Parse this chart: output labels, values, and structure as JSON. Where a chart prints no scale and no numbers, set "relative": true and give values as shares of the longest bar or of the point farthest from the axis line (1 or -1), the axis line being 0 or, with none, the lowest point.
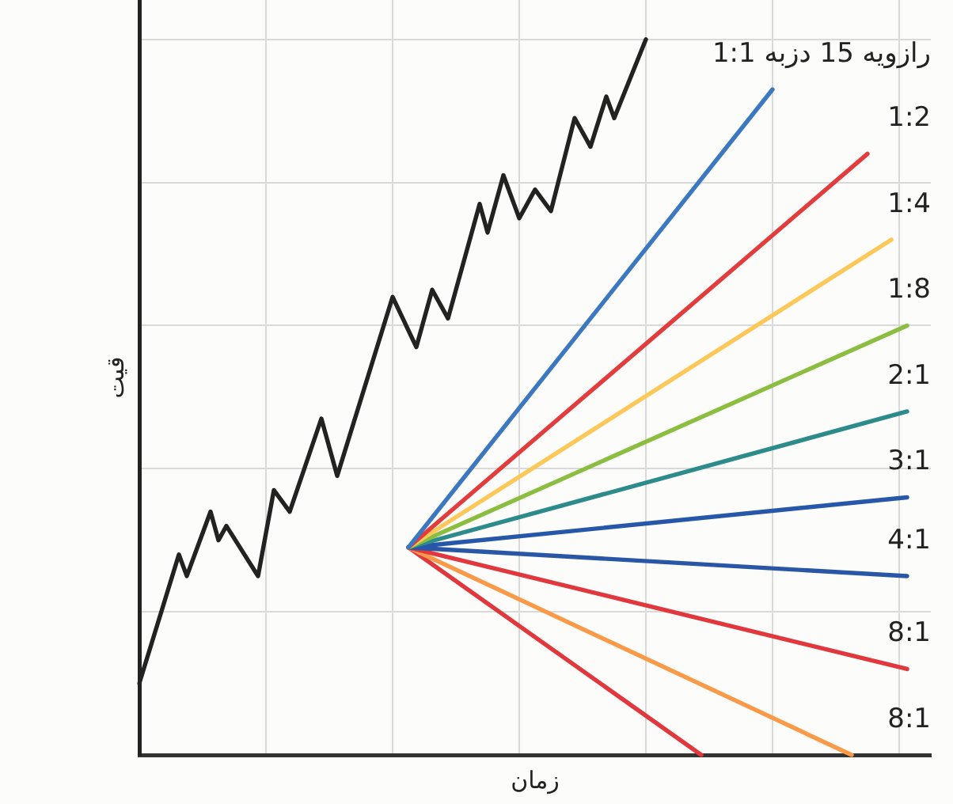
{
  "chart_data": {
    "type": "line",
    "xlabel": "زمان",
    "ylabel": "قیت",
    "relative": true,
    "grid": true,
    "marker": "none",
    "line_style": "solid",
    "categories": [
      null,
      null,
      null,
      null,
      null,
      null,
      null,
      null,
      null,
      null,
      null,
      null,
      null,
      null,
      null,
      null,
      null,
      null,
      null,
      null,
      null,
      null,
      null,
      null,
      null,
      null,
      null,
      null,
      null,
      null,
      null,
      null,
      null,
      null,
      null,
      null,
      null,
      null,
      null,
      null,
      null,
      null,
      null,
      null,
      null,
      null,
      null,
      null,
      null,
      null,
      null,
      null,
      null,
      null,
      null,
      null,
      null,
      null,
      null,
      null,
      null,
      null,
      null,
      null,
      null,
      null,
      null,
      null,
      null,
      null,
      null,
      null,
      null,
      null,
      null,
      null,
      null,
      null,
      null,
      null,
      null,
      null,
      null,
      null,
      null,
      null,
      null,
      null,
      null,
      null,
      null,
      null,
      null,
      null,
      null,
      null,
      null,
      null,
      null,
      null,
      null
    ],
    "series": [
      {
        "color": "#222222",
        "values": [
          0.1,
          null,
          null,
          null,
          null,
          0.28,
          0.25,
          null,
          null,
          0.34,
          0.3,
          0.32,
          null,
          null,
          null,
          0.25,
          null,
          0.37,
          null,
          0.34,
          null,
          null,
          null,
          0.47,
          null,
          0.39,
          null,
          null,
          null,
          null,
          null,
          null,
          0.64,
          null,
          null,
          0.57,
          null,
          0.65,
          null,
          0.61,
          null,
          null,
          null,
          0.77,
          0.73,
          null,
          0.81,
          null,
          0.75,
          null,
          0.79,
          null,
          0.76,
          null,
          null,
          0.89,
          null,
          0.85,
          null,
          0.92,
          0.89,
          null,
          null,
          null,
          1,
          null,
          null,
          null,
          null,
          null,
          null,
          null,
          null,
          null,
          null,
          null,
          null,
          null,
          null,
          null,
          null,
          null,
          null,
          null,
          null,
          null,
          null,
          null,
          null,
          null,
          null,
          null,
          null,
          null,
          null,
          null,
          null,
          null,
          null,
          null,
          null
        ]
      },
      {
        "name": "رازویه 15 دزبه 1:1",
        "color": "#3b78bf",
        "values": [
          null,
          null,
          null,
          null,
          null,
          null,
          null,
          null,
          null,
          null,
          null,
          null,
          null,
          null,
          null,
          null,
          null,
          null,
          null,
          null,
          null,
          null,
          null,
          null,
          null,
          null,
          null,
          null,
          null,
          null,
          null,
          null,
          null,
          null,
          0.29,
          null,
          null,
          null,
          null,
          null,
          null,
          null,
          null,
          null,
          null,
          null,
          null,
          null,
          null,
          null,
          null,
          null,
          null,
          null,
          null,
          null,
          null,
          null,
          null,
          null,
          null,
          null,
          null,
          null,
          null,
          null,
          null,
          null,
          null,
          null,
          null,
          null,
          null,
          null,
          null,
          null,
          null,
          null,
          null,
          null,
          0.93,
          null,
          null,
          null,
          null,
          null,
          null,
          null,
          null,
          null,
          null,
          null,
          null,
          null,
          null,
          null,
          null,
          null,
          null,
          null,
          null
        ]
      },
      {
        "name": "1:2",
        "color": "#e23c3c",
        "values": [
          null,
          null,
          null,
          null,
          null,
          null,
          null,
          null,
          null,
          null,
          null,
          null,
          null,
          null,
          null,
          null,
          null,
          null,
          null,
          null,
          null,
          null,
          null,
          null,
          null,
          null,
          null,
          null,
          null,
          null,
          null,
          null,
          null,
          null,
          0.29,
          null,
          null,
          null,
          null,
          null,
          null,
          null,
          null,
          null,
          null,
          null,
          null,
          null,
          null,
          null,
          null,
          null,
          null,
          null,
          null,
          null,
          null,
          null,
          null,
          null,
          null,
          null,
          null,
          null,
          null,
          null,
          null,
          null,
          null,
          null,
          null,
          null,
          null,
          null,
          null,
          null,
          null,
          null,
          null,
          null,
          null,
          null,
          null,
          null,
          null,
          null,
          null,
          null,
          null,
          null,
          null,
          null,
          0.84,
          null,
          null,
          null,
          null,
          null,
          null,
          null,
          null
        ]
      },
      {
        "name": "1:4",
        "color": "#fdc85a",
        "values": [
          null,
          null,
          null,
          null,
          null,
          null,
          null,
          null,
          null,
          null,
          null,
          null,
          null,
          null,
          null,
          null,
          null,
          null,
          null,
          null,
          null,
          null,
          null,
          null,
          null,
          null,
          null,
          null,
          null,
          null,
          null,
          null,
          null,
          null,
          0.29,
          null,
          null,
          null,
          null,
          null,
          null,
          null,
          null,
          null,
          null,
          null,
          null,
          null,
          null,
          null,
          null,
          null,
          null,
          null,
          null,
          null,
          null,
          null,
          null,
          null,
          null,
          null,
          null,
          null,
          null,
          null,
          null,
          null,
          null,
          null,
          null,
          null,
          null,
          null,
          null,
          null,
          null,
          null,
          null,
          null,
          null,
          null,
          null,
          null,
          null,
          null,
          null,
          null,
          null,
          null,
          null,
          null,
          null,
          null,
          null,
          0.72,
          null,
          null,
          null,
          null,
          null
        ]
      },
      {
        "name": "1:8",
        "color": "#8bbe40",
        "values": [
          null,
          null,
          null,
          null,
          null,
          null,
          null,
          null,
          null,
          null,
          null,
          null,
          null,
          null,
          null,
          null,
          null,
          null,
          null,
          null,
          null,
          null,
          null,
          null,
          null,
          null,
          null,
          null,
          null,
          null,
          null,
          null,
          null,
          null,
          0.29,
          null,
          null,
          null,
          null,
          null,
          null,
          null,
          null,
          null,
          null,
          null,
          null,
          null,
          null,
          null,
          null,
          null,
          null,
          null,
          null,
          null,
          null,
          null,
          null,
          null,
          null,
          null,
          null,
          null,
          null,
          null,
          null,
          null,
          null,
          null,
          null,
          null,
          null,
          null,
          null,
          null,
          null,
          null,
          null,
          null,
          null,
          null,
          null,
          null,
          null,
          null,
          null,
          null,
          null,
          null,
          null,
          null,
          null,
          null,
          null,
          null,
          null,
          0.6,
          null,
          null,
          null
        ]
      },
      {
        "name": "2:1",
        "color": "#2d8b8b",
        "values": [
          null,
          null,
          null,
          null,
          null,
          null,
          null,
          null,
          null,
          null,
          null,
          null,
          null,
          null,
          null,
          null,
          null,
          null,
          null,
          null,
          null,
          null,
          null,
          null,
          null,
          null,
          null,
          null,
          null,
          null,
          null,
          null,
          null,
          null,
          0.29,
          null,
          null,
          null,
          null,
          null,
          null,
          null,
          null,
          null,
          null,
          null,
          null,
          null,
          null,
          null,
          null,
          null,
          null,
          null,
          null,
          null,
          null,
          null,
          null,
          null,
          null,
          null,
          null,
          null,
          null,
          null,
          null,
          null,
          null,
          null,
          null,
          null,
          null,
          null,
          null,
          null,
          null,
          null,
          null,
          null,
          null,
          null,
          null,
          null,
          null,
          null,
          null,
          null,
          null,
          null,
          null,
          null,
          null,
          null,
          null,
          null,
          null,
          0.48,
          null,
          null,
          null
        ]
      },
      {
        "name": "3:1",
        "color": "#2757a8",
        "values": [
          null,
          null,
          null,
          null,
          null,
          null,
          null,
          null,
          null,
          null,
          null,
          null,
          null,
          null,
          null,
          null,
          null,
          null,
          null,
          null,
          null,
          null,
          null,
          null,
          null,
          null,
          null,
          null,
          null,
          null,
          null,
          null,
          null,
          null,
          0.29,
          null,
          null,
          null,
          null,
          null,
          null,
          null,
          null,
          null,
          null,
          null,
          null,
          null,
          null,
          null,
          null,
          null,
          null,
          null,
          null,
          null,
          null,
          null,
          null,
          null,
          null,
          null,
          null,
          null,
          null,
          null,
          null,
          null,
          null,
          null,
          null,
          null,
          null,
          null,
          null,
          null,
          null,
          null,
          null,
          null,
          null,
          null,
          null,
          null,
          null,
          null,
          null,
          null,
          null,
          null,
          null,
          null,
          null,
          null,
          null,
          null,
          null,
          0.36,
          null,
          null,
          null
        ]
      },
      {
        "name": "4:1",
        "color": "#2a56a6",
        "values": [
          null,
          null,
          null,
          null,
          null,
          null,
          null,
          null,
          null,
          null,
          null,
          null,
          null,
          null,
          null,
          null,
          null,
          null,
          null,
          null,
          null,
          null,
          null,
          null,
          null,
          null,
          null,
          null,
          null,
          null,
          null,
          null,
          null,
          null,
          0.29,
          null,
          null,
          null,
          null,
          null,
          null,
          null,
          null,
          null,
          null,
          null,
          null,
          null,
          null,
          null,
          null,
          null,
          null,
          null,
          null,
          null,
          null,
          null,
          null,
          null,
          null,
          null,
          null,
          null,
          null,
          null,
          null,
          null,
          null,
          null,
          null,
          null,
          null,
          null,
          null,
          null,
          null,
          null,
          null,
          null,
          null,
          null,
          null,
          null,
          null,
          null,
          null,
          null,
          null,
          null,
          null,
          null,
          null,
          null,
          null,
          null,
          null,
          0.25,
          null,
          null,
          null
        ]
      },
      {
        "name": "8:1",
        "color": "#e0383d",
        "values": [
          null,
          null,
          null,
          null,
          null,
          null,
          null,
          null,
          null,
          null,
          null,
          null,
          null,
          null,
          null,
          null,
          null,
          null,
          null,
          null,
          null,
          null,
          null,
          null,
          null,
          null,
          null,
          null,
          null,
          null,
          null,
          null,
          null,
          null,
          0.29,
          null,
          null,
          null,
          null,
          null,
          null,
          null,
          null,
          null,
          null,
          null,
          null,
          null,
          null,
          null,
          null,
          null,
          null,
          null,
          null,
          null,
          null,
          null,
          null,
          null,
          null,
          null,
          null,
          null,
          null,
          null,
          null,
          null,
          null,
          null,
          null,
          null,
          null,
          null,
          null,
          null,
          null,
          null,
          null,
          null,
          null,
          null,
          null,
          null,
          null,
          null,
          null,
          null,
          null,
          null,
          null,
          null,
          null,
          null,
          null,
          null,
          null,
          0.12,
          null,
          null,
          null
        ]
      },
      {
        "name": "8:1",
        "color": "#fa9a48",
        "values": [
          null,
          null,
          null,
          null,
          null,
          null,
          null,
          null,
          null,
          null,
          null,
          null,
          null,
          null,
          null,
          null,
          null,
          null,
          null,
          null,
          null,
          null,
          null,
          null,
          null,
          null,
          null,
          null,
          null,
          null,
          null,
          null,
          null,
          null,
          0.29,
          null,
          null,
          null,
          null,
          null,
          null,
          null,
          null,
          null,
          null,
          null,
          null,
          null,
          null,
          null,
          null,
          null,
          null,
          null,
          null,
          null,
          null,
          null,
          null,
          null,
          null,
          null,
          null,
          null,
          null,
          null,
          null,
          null,
          null,
          null,
          null,
          null,
          null,
          null,
          null,
          null,
          null,
          null,
          null,
          null,
          null,
          null,
          null,
          null,
          null,
          null,
          null,
          null,
          null,
          null,
          0,
          null,
          null,
          null,
          null,
          null,
          null,
          null,
          null,
          null,
          null
        ]
      },
      {
        "color": "#e0383d",
        "values": [
          null,
          null,
          null,
          null,
          null,
          null,
          null,
          null,
          null,
          null,
          null,
          null,
          null,
          null,
          null,
          null,
          null,
          null,
          null,
          null,
          null,
          null,
          null,
          null,
          null,
          null,
          null,
          null,
          null,
          null,
          null,
          null,
          null,
          null,
          0.29,
          null,
          null,
          null,
          null,
          null,
          null,
          null,
          null,
          null,
          null,
          null,
          null,
          null,
          null,
          null,
          null,
          null,
          null,
          null,
          null,
          null,
          null,
          null,
          null,
          null,
          null,
          null,
          null,
          null,
          null,
          null,
          null,
          null,
          null,
          null,
          null,
          0,
          null,
          null,
          null,
          null,
          null,
          null,
          null,
          null,
          null,
          null,
          null,
          null,
          null,
          null,
          null,
          null,
          null,
          null,
          null,
          null,
          null,
          null,
          null,
          null,
          null,
          null,
          null,
          null,
          null
        ]
      }
    ]
  }
}
